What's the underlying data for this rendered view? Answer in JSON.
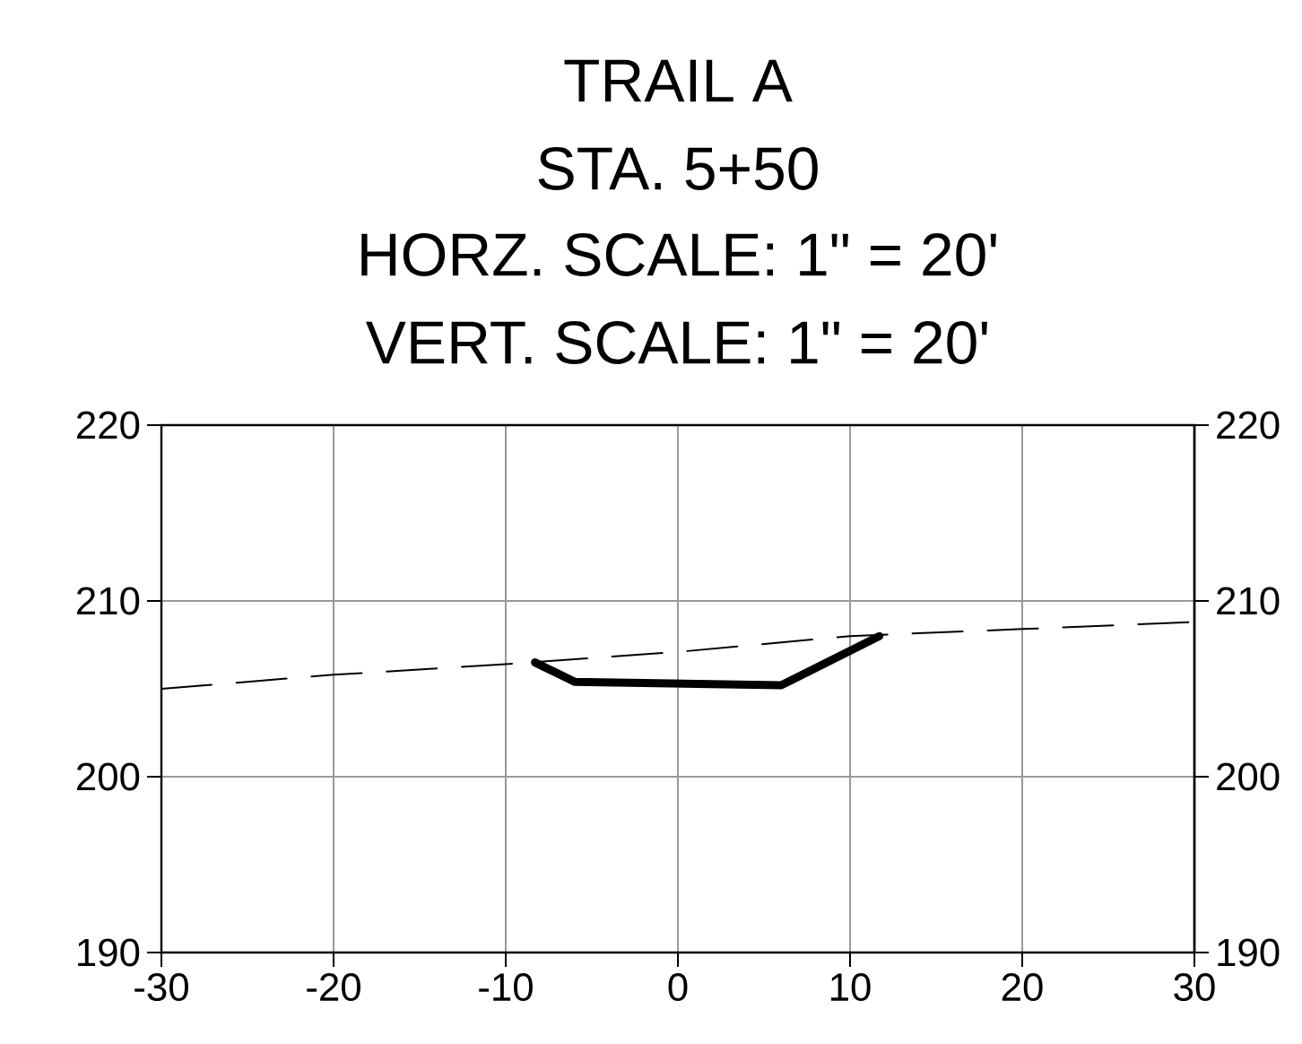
{
  "chart_data": {
    "type": "line",
    "title": "TRAIL A",
    "subtitle": "STA. 5+50",
    "annotations": [
      "HORZ. SCALE: 1\" = 20'",
      "VERT. SCALE: 1\" = 20'"
    ],
    "series": [
      {
        "color": "#000000",
        "line_style": "dashed",
        "x": [
          -30,
          -20,
          -10,
          0,
          10,
          20,
          30
        ],
        "values": [
          205.0,
          205.8,
          206.4,
          207.1,
          208.0,
          208.4,
          208.8
        ]
      },
      {
        "color": "#000000",
        "line_style": "solid",
        "x": [
          -8.3,
          -6.0,
          6.0,
          11.7
        ],
        "values": [
          206.5,
          205.4,
          205.2,
          208.0
        ]
      }
    ],
    "xlim": [
      -30,
      30
    ],
    "xticks": [
      -30,
      -20,
      -10,
      0,
      10,
      20,
      30
    ],
    "ylim": [
      190,
      220
    ],
    "yticks": [
      190,
      200,
      210,
      220
    ],
    "y2lim": [
      190,
      220
    ],
    "y2ticks": [
      190,
      200,
      210,
      220
    ],
    "grid": true,
    "marker": "none"
  }
}
